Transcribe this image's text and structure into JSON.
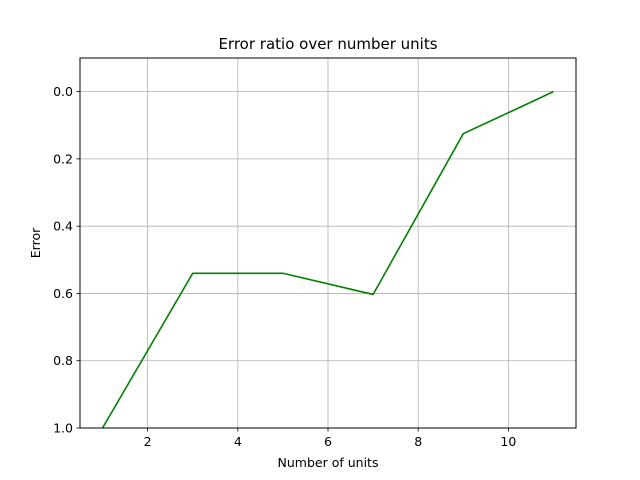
{
  "chart_data": {
    "type": "line",
    "title": "Error ratio over number units",
    "xlabel": "Number of units",
    "ylabel": "Error",
    "xlim": [
      0.5,
      11.5
    ],
    "ylim": [
      1.0,
      -0.1
    ],
    "y_inverted": true,
    "xticks": [
      2,
      4,
      6,
      8,
      10
    ],
    "yticks": [
      0.0,
      0.2,
      0.4,
      0.6,
      0.8,
      1.0
    ],
    "xtick_labels": [
      "2",
      "4",
      "6",
      "8",
      "10"
    ],
    "ytick_labels": [
      "0.0",
      "0.2",
      "0.4",
      "0.6",
      "0.8",
      "1.0"
    ],
    "grid": true,
    "legend": "none",
    "series": [
      {
        "color": "#008000",
        "x": [
          1,
          3,
          5,
          7,
          9,
          11
        ],
        "y": [
          1.0,
          0.54,
          0.54,
          0.603,
          0.125,
          0.0
        ]
      }
    ]
  }
}
